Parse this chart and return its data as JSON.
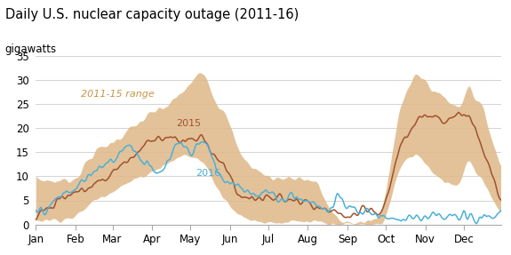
{
  "title": "Daily U.S. nuclear capacity outage (2011-16)",
  "ylabel": "gigawatts",
  "ylim": [
    0,
    35
  ],
  "yticks": [
    0,
    5,
    10,
    15,
    20,
    25,
    30,
    35
  ],
  "background_color": "#ffffff",
  "shading_color": "#deb887",
  "line_2015_color": "#a0522d",
  "line_2016_color": "#4ab0d9",
  "annotation_range": "2011-15 range",
  "annotation_2015": "2015",
  "annotation_2016": "2016",
  "title_fontsize": 10.5,
  "label_fontsize": 8.5,
  "tick_fontsize": 8.5,
  "range_upper_ctrl": [
    [
      0,
      9.5
    ],
    [
      15,
      9.0
    ],
    [
      31,
      9.5
    ],
    [
      45,
      15.0
    ],
    [
      59,
      17.0
    ],
    [
      75,
      20.0
    ],
    [
      90,
      23.0
    ],
    [
      105,
      25.0
    ],
    [
      120,
      29.0
    ],
    [
      130,
      32.0
    ],
    [
      135,
      31.0
    ],
    [
      140,
      25.0
    ],
    [
      150,
      24.0
    ],
    [
      152,
      20.0
    ],
    [
      160,
      14.0
    ],
    [
      170,
      12.0
    ],
    [
      180,
      10.0
    ],
    [
      190,
      9.5
    ],
    [
      200,
      10.0
    ],
    [
      210,
      9.5
    ],
    [
      220,
      9.0
    ],
    [
      228,
      4.0
    ],
    [
      235,
      1.0
    ],
    [
      242,
      0.5
    ],
    [
      260,
      0.5
    ],
    [
      270,
      1.5
    ],
    [
      274,
      6.0
    ],
    [
      280,
      18.0
    ],
    [
      285,
      25.0
    ],
    [
      292,
      28.5
    ],
    [
      298,
      31.5
    ],
    [
      305,
      30.0
    ],
    [
      310,
      28.0
    ],
    [
      320,
      26.5
    ],
    [
      330,
      24.0
    ],
    [
      335,
      25.5
    ],
    [
      338,
      31.5
    ],
    [
      342,
      27.0
    ],
    [
      350,
      24.0
    ],
    [
      355,
      20.0
    ],
    [
      360,
      15.0
    ],
    [
      364,
      11.0
    ]
  ],
  "range_lower_ctrl": [
    [
      0,
      1.0
    ],
    [
      15,
      1.0
    ],
    [
      31,
      1.5
    ],
    [
      45,
      5.0
    ],
    [
      59,
      7.0
    ],
    [
      75,
      9.0
    ],
    [
      90,
      11.0
    ],
    [
      105,
      13.0
    ],
    [
      115,
      14.5
    ],
    [
      125,
      14.0
    ],
    [
      135,
      12.0
    ],
    [
      140,
      8.0
    ],
    [
      150,
      5.0
    ],
    [
      155,
      3.0
    ],
    [
      160,
      1.5
    ],
    [
      170,
      1.0
    ],
    [
      180,
      0.5
    ],
    [
      190,
      0.5
    ],
    [
      210,
      0.5
    ],
    [
      220,
      0.5
    ],
    [
      228,
      0.0
    ],
    [
      242,
      0.0
    ],
    [
      260,
      0.0
    ],
    [
      270,
      0.0
    ],
    [
      274,
      1.0
    ],
    [
      280,
      8.0
    ],
    [
      285,
      12.0
    ],
    [
      292,
      14.0
    ],
    [
      298,
      15.0
    ],
    [
      305,
      13.0
    ],
    [
      310,
      11.0
    ],
    [
      320,
      9.0
    ],
    [
      330,
      8.0
    ],
    [
      335,
      10.0
    ],
    [
      338,
      16.0
    ],
    [
      342,
      11.0
    ],
    [
      350,
      9.0
    ],
    [
      355,
      7.0
    ],
    [
      360,
      4.0
    ],
    [
      364,
      2.0
    ]
  ],
  "curve_2015_ctrl": [
    [
      0,
      2.0
    ],
    [
      10,
      3.5
    ],
    [
      20,
      5.5
    ],
    [
      31,
      6.5
    ],
    [
      40,
      7.5
    ],
    [
      50,
      9.0
    ],
    [
      59,
      10.5
    ],
    [
      65,
      12.0
    ],
    [
      75,
      14.0
    ],
    [
      80,
      15.0
    ],
    [
      85,
      16.5
    ],
    [
      90,
      17.5
    ],
    [
      95,
      18.5
    ],
    [
      100,
      18.0
    ],
    [
      105,
      18.5
    ],
    [
      110,
      17.5
    ],
    [
      115,
      16.5
    ],
    [
      120,
      17.5
    ],
    [
      125,
      17.5
    ],
    [
      128,
      18.5
    ],
    [
      132,
      17.0
    ],
    [
      137,
      16.0
    ],
    [
      140,
      14.5
    ],
    [
      145,
      13.5
    ],
    [
      150,
      11.0
    ],
    [
      155,
      8.0
    ],
    [
      160,
      6.0
    ],
    [
      165,
      5.5
    ],
    [
      170,
      5.5
    ],
    [
      175,
      5.0
    ],
    [
      180,
      5.5
    ],
    [
      190,
      5.5
    ],
    [
      200,
      5.0
    ],
    [
      210,
      4.5
    ],
    [
      215,
      3.5
    ],
    [
      220,
      3.5
    ],
    [
      225,
      3.0
    ],
    [
      228,
      2.5
    ],
    [
      232,
      2.0
    ],
    [
      235,
      2.5
    ],
    [
      240,
      2.0
    ],
    [
      242,
      2.0
    ],
    [
      245,
      1.5
    ],
    [
      250,
      1.5
    ],
    [
      255,
      2.5
    ],
    [
      260,
      3.0
    ],
    [
      265,
      2.5
    ],
    [
      270,
      2.0
    ],
    [
      274,
      4.0
    ],
    [
      278,
      9.0
    ],
    [
      282,
      14.0
    ],
    [
      288,
      18.0
    ],
    [
      292,
      19.0
    ],
    [
      298,
      21.0
    ],
    [
      305,
      22.0
    ],
    [
      310,
      23.0
    ],
    [
      315,
      23.5
    ],
    [
      318,
      22.0
    ],
    [
      322,
      21.0
    ],
    [
      325,
      22.5
    ],
    [
      330,
      23.5
    ],
    [
      333,
      22.5
    ],
    [
      338,
      23.0
    ],
    [
      342,
      21.0
    ],
    [
      348,
      18.0
    ],
    [
      352,
      15.0
    ],
    [
      356,
      12.0
    ],
    [
      360,
      8.0
    ],
    [
      364,
      2.5
    ]
  ],
  "curve_2016_ctrl": [
    [
      0,
      2.0
    ],
    [
      10,
      3.5
    ],
    [
      20,
      6.0
    ],
    [
      31,
      7.5
    ],
    [
      40,
      9.5
    ],
    [
      50,
      11.5
    ],
    [
      59,
      13.5
    ],
    [
      65,
      15.0
    ],
    [
      70,
      16.0
    ],
    [
      74,
      17.0
    ],
    [
      78,
      16.0
    ],
    [
      82,
      13.0
    ],
    [
      85,
      11.5
    ],
    [
      88,
      13.0
    ],
    [
      92,
      11.5
    ],
    [
      95,
      10.5
    ],
    [
      100,
      11.5
    ],
    [
      105,
      13.5
    ],
    [
      108,
      16.5
    ],
    [
      112,
      17.0
    ],
    [
      115,
      16.5
    ],
    [
      118,
      15.5
    ],
    [
      120,
      15.0
    ],
    [
      122,
      14.5
    ],
    [
      125,
      16.0
    ],
    [
      128,
      17.5
    ],
    [
      131,
      17.0
    ],
    [
      135,
      16.0
    ],
    [
      138,
      14.0
    ],
    [
      140,
      12.0
    ],
    [
      143,
      10.0
    ],
    [
      146,
      9.0
    ],
    [
      150,
      8.5
    ],
    [
      152,
      9.0
    ],
    [
      155,
      7.5
    ],
    [
      158,
      8.5
    ],
    [
      160,
      8.0
    ],
    [
      163,
      7.0
    ],
    [
      165,
      6.5
    ],
    [
      168,
      6.0
    ],
    [
      170,
      6.5
    ],
    [
      175,
      6.0
    ],
    [
      178,
      7.5
    ],
    [
      180,
      7.5
    ],
    [
      183,
      6.0
    ],
    [
      186,
      6.0
    ],
    [
      190,
      5.5
    ],
    [
      195,
      5.5
    ],
    [
      200,
      6.0
    ],
    [
      205,
      5.5
    ],
    [
      210,
      5.0
    ],
    [
      215,
      4.5
    ],
    [
      220,
      4.0
    ],
    [
      225,
      3.5
    ],
    [
      228,
      3.0
    ],
    [
      232,
      3.5
    ],
    [
      235,
      5.5
    ],
    [
      238,
      6.0
    ],
    [
      240,
      5.0
    ],
    [
      242,
      4.0
    ],
    [
      245,
      3.5
    ],
    [
      248,
      3.0
    ],
    [
      252,
      2.5
    ],
    [
      255,
      2.5
    ],
    [
      258,
      3.0
    ],
    [
      260,
      3.0
    ],
    [
      264,
      2.5
    ],
    [
      268,
      2.0
    ],
    [
      270,
      2.0
    ],
    [
      272,
      1.5
    ],
    [
      274,
      1.5
    ],
    [
      278,
      1.5
    ],
    [
      282,
      1.5
    ],
    [
      288,
      1.5
    ],
    [
      292,
      1.5
    ],
    [
      298,
      1.5
    ],
    [
      305,
      1.5
    ],
    [
      310,
      1.5
    ],
    [
      315,
      1.5
    ],
    [
      320,
      1.5
    ],
    [
      325,
      1.5
    ],
    [
      330,
      1.5
    ],
    [
      335,
      1.5
    ],
    [
      340,
      1.5
    ],
    [
      345,
      1.5
    ],
    [
      350,
      1.5
    ],
    [
      355,
      1.5
    ],
    [
      360,
      1.5
    ],
    [
      364,
      1.5
    ]
  ]
}
